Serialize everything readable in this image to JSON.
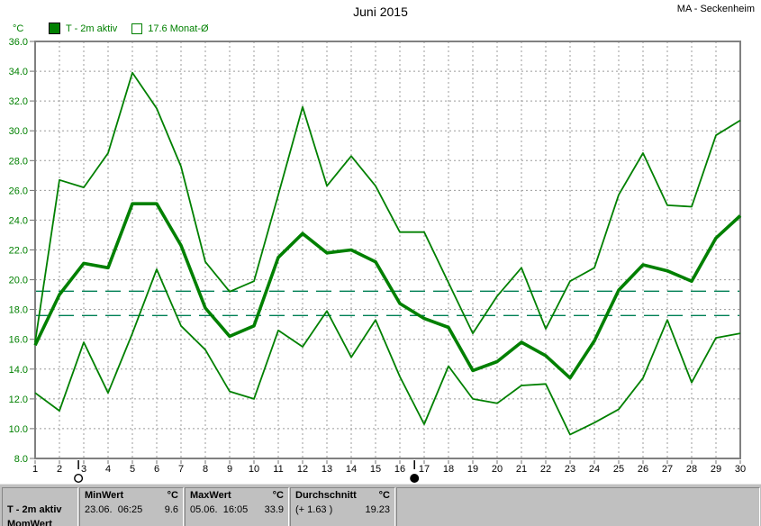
{
  "header": {
    "title": "Juni 2015",
    "station": "MA - Seckenheim"
  },
  "y_axis": {
    "unit": "°C"
  },
  "legend": {
    "series1": "T - 2m aktiv",
    "series2": "17.6 Monat-Ø"
  },
  "colors": {
    "line_green": "#008000",
    "reference_dashed": "#008055",
    "grid_gray": "#9b9b9b",
    "axis_gray": "#808080",
    "statusbar_bg": "#c0c0c0"
  },
  "chart_data": {
    "type": "line",
    "title": "Juni 2015",
    "xlabel": "",
    "ylabel": "°C",
    "x_range": [
      1,
      30
    ],
    "x": [
      1,
      2,
      3,
      4,
      5,
      6,
      7,
      8,
      9,
      10,
      11,
      12,
      13,
      14,
      15,
      16,
      17,
      18,
      19,
      20,
      21,
      22,
      23,
      24,
      25,
      26,
      27,
      28,
      29,
      30
    ],
    "ylim": [
      8,
      36
    ],
    "ytick_step": 2,
    "grid": true,
    "legend_position": "top-left",
    "legend_entries": [
      "T - 2m aktiv",
      "17.6 Monat-Ø"
    ],
    "series": [
      {
        "name": "max",
        "values": [
          15.8,
          26.7,
          26.2,
          28.5,
          33.9,
          31.5,
          27.6,
          21.2,
          19.2,
          19.9,
          25.7,
          31.6,
          26.3,
          28.3,
          26.3,
          23.2,
          23.2,
          19.8,
          16.4,
          18.9,
          20.8,
          16.7,
          19.9,
          20.8,
          25.7,
          28.5,
          25.0,
          24.9,
          29.7,
          30.7
        ]
      },
      {
        "name": "mean",
        "emphasis": true,
        "values": [
          15.6,
          19.0,
          21.1,
          20.8,
          25.1,
          25.1,
          22.3,
          18.1,
          16.2,
          16.9,
          21.5,
          23.1,
          21.8,
          22.0,
          21.2,
          18.4,
          17.4,
          16.8,
          13.9,
          14.5,
          15.8,
          14.9,
          13.4,
          15.9,
          19.3,
          21.0,
          20.6,
          19.9,
          22.8,
          24.3
        ]
      },
      {
        "name": "min",
        "values": [
          12.4,
          11.2,
          15.8,
          12.4,
          16.4,
          20.7,
          16.9,
          15.3,
          12.5,
          12.0,
          16.6,
          15.5,
          17.9,
          14.8,
          17.3,
          13.5,
          10.3,
          14.2,
          12.0,
          11.7,
          12.9,
          13.0,
          9.6,
          10.4,
          11.3,
          13.4,
          17.3,
          13.1,
          16.1,
          16.4
        ]
      }
    ],
    "reference_lines": [
      {
        "label": "Durchschnitt",
        "value": 19.23
      },
      {
        "label": "17.6 Monat-Ø",
        "value": 17.6
      }
    ],
    "moon_markers": [
      {
        "x": 2.78,
        "phase": "full",
        "symbol": "○"
      },
      {
        "x": 16.6,
        "phase": "new",
        "symbol": "●"
      }
    ]
  },
  "statusbar": {
    "channel": "T - 2m aktiv",
    "channel_line2": "MomWert",
    "min": {
      "label": "MinWert",
      "unit": "°C",
      "date": "23.06.  06:25",
      "value": "9.6"
    },
    "max": {
      "label": "MaxWert",
      "unit": "°C",
      "date": "05.06.  16:05",
      "value": "33.9"
    },
    "avg": {
      "label": "Durchschnitt",
      "unit": "°C",
      "anomaly": "(+ 1.63 )",
      "value": "19.23"
    }
  }
}
